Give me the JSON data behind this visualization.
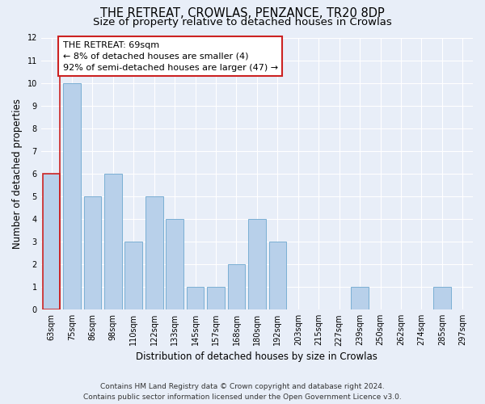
{
  "title": "THE RETREAT, CROWLAS, PENZANCE, TR20 8DP",
  "subtitle": "Size of property relative to detached houses in Crowlas",
  "xlabel": "Distribution of detached houses by size in Crowlas",
  "ylabel": "Number of detached properties",
  "categories": [
    "63sqm",
    "75sqm",
    "86sqm",
    "98sqm",
    "110sqm",
    "122sqm",
    "133sqm",
    "145sqm",
    "157sqm",
    "168sqm",
    "180sqm",
    "192sqm",
    "203sqm",
    "215sqm",
    "227sqm",
    "239sqm",
    "250sqm",
    "262sqm",
    "274sqm",
    "285sqm",
    "297sqm"
  ],
  "values": [
    6,
    10,
    5,
    6,
    3,
    5,
    4,
    1,
    1,
    2,
    4,
    3,
    0,
    0,
    0,
    1,
    0,
    0,
    0,
    1,
    0
  ],
  "bar_color": "#b8d0ea",
  "bar_edge_color": "#7aafd4",
  "highlight_bar_index": 0,
  "highlight_edge_color": "#cc2222",
  "annotation_box_text": "THE RETREAT: 69sqm\n← 8% of detached houses are smaller (4)\n92% of semi-detached houses are larger (47) →",
  "annotation_box_color": "white",
  "annotation_box_edge_color": "#cc2222",
  "property_line_color": "#cc2222",
  "ylim": [
    0,
    12
  ],
  "yticks": [
    0,
    1,
    2,
    3,
    4,
    5,
    6,
    7,
    8,
    9,
    10,
    11,
    12
  ],
  "background_color": "#e8eef8",
  "grid_color": "#ffffff",
  "title_fontsize": 10.5,
  "subtitle_fontsize": 9.5,
  "axis_label_fontsize": 8.5,
  "tick_fontsize": 7,
  "annotation_fontsize": 8,
  "footer_fontsize": 6.5,
  "footer_line1": "Contains HM Land Registry data © Crown copyright and database right 2024.",
  "footer_line2": "Contains public sector information licensed under the Open Government Licence v3.0."
}
